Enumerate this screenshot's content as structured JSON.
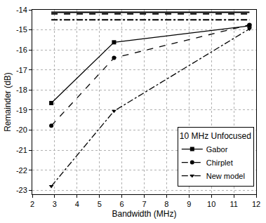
{
  "chart_data": {
    "type": "line",
    "x_label": "Bandwidth (MHz)",
    "y_label": "Remainder (dB)",
    "legend_title": "10 MHz Unfocused",
    "xlim": [
      2,
      12
    ],
    "xticks": [
      2,
      3,
      4,
      5,
      6,
      7,
      8,
      9,
      10,
      11,
      12
    ],
    "ylim": [
      -23.2,
      -14
    ],
    "yticks": [
      -23,
      -22,
      -21,
      -20,
      -19,
      -18,
      -17,
      -16,
      -15,
      -14
    ],
    "grid": true,
    "legend": "lower right",
    "series": [
      {
        "name": "Gabor",
        "color": "#000000",
        "marker": "square",
        "line_style": "solid",
        "x": [
          2.85,
          5.65,
          11.7
        ],
        "values": [
          -18.65,
          -15.62,
          -14.8
        ]
      },
      {
        "name": "Chirplet",
        "color": "#000000",
        "marker": "circle",
        "line_style": "dash",
        "x": [
          2.85,
          5.65,
          11.7
        ],
        "values": [
          -19.78,
          -16.4,
          -14.75
        ]
      },
      {
        "name": "New model",
        "color": "#000000",
        "marker": "triangle-down",
        "line_style": "dashdot",
        "x": [
          2.85,
          5.65,
          11.7
        ],
        "values": [
          -22.8,
          -19.05,
          -14.95
        ]
      },
      {
        "color": "#000000",
        "line_style": "solid",
        "x": [
          2.85,
          11.7
        ],
        "values": [
          -14.12,
          -14.12
        ]
      },
      {
        "color": "#000000",
        "line_style": "dash",
        "x": [
          2.85,
          11.7
        ],
        "values": [
          -14.2,
          -14.2
        ]
      },
      {
        "color": "#000000",
        "line_style": "dashdot",
        "x": [
          2.85,
          11.7
        ],
        "values": [
          -14.5,
          -14.5
        ]
      }
    ]
  }
}
